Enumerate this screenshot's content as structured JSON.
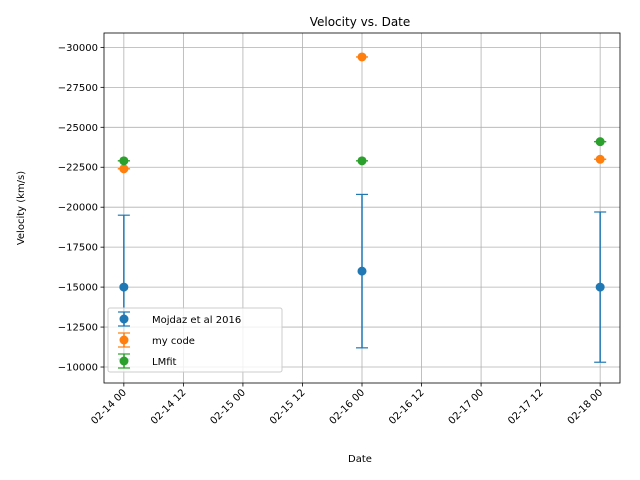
{
  "chart_data": {
    "type": "scatter",
    "title": "Velocity vs. Date",
    "xlabel": "Date",
    "ylabel": "Velocity (km/s)",
    "y_inverted": true,
    "ylim": [
      -9000,
      -30900
    ],
    "xlim": [
      "2016-02-13T20:00",
      "2016-02-18T04:00"
    ],
    "grid": true,
    "legend_position": "lower left",
    "x_ticks": [
      "2016-02-14T00:00",
      "2016-02-14T12:00",
      "2016-02-15T00:00",
      "2016-02-15T12:00",
      "2016-02-16T00:00",
      "2016-02-16T12:00",
      "2016-02-17T00:00",
      "2016-02-17T12:00",
      "2016-02-18T00:00"
    ],
    "x_tick_labels": [
      "02-14 00",
      "02-14 12",
      "02-15 00",
      "02-15 12",
      "02-16 00",
      "02-16 12",
      "02-17 00",
      "02-17 12",
      "02-18 00"
    ],
    "y_ticks": [
      -30000,
      -27500,
      -25000,
      -22500,
      -20000,
      -17500,
      -15000,
      -12500,
      -10000
    ],
    "y_tick_labels": [
      "−30000",
      "−27500",
      "−25000",
      "−22500",
      "−20000",
      "−17500",
      "−15000",
      "−12500",
      "−10000"
    ],
    "series": [
      {
        "name": "Mojdaz et al 2016",
        "color": "#1f77b4",
        "x": [
          "2016-02-14T00:00",
          "2016-02-16T00:00",
          "2016-02-18T00:00"
        ],
        "y": [
          -15000,
          -16000,
          -15000
        ],
        "yerr": [
          4500,
          4800,
          4700
        ]
      },
      {
        "name": "my code",
        "color": "#ff7f0e",
        "x": [
          "2016-02-14T00:00",
          "2016-02-16T00:00",
          "2016-02-18T00:00"
        ],
        "y": [
          -22400,
          -29400,
          -23000
        ],
        "yerr": [
          0,
          0,
          0
        ]
      },
      {
        "name": "LMfit",
        "color": "#2ca02c",
        "x": [
          "2016-02-14T00:00",
          "2016-02-16T00:00",
          "2016-02-18T00:00"
        ],
        "y": [
          -22900,
          -22900,
          -24100
        ],
        "yerr": [
          0,
          0,
          0
        ]
      }
    ]
  }
}
